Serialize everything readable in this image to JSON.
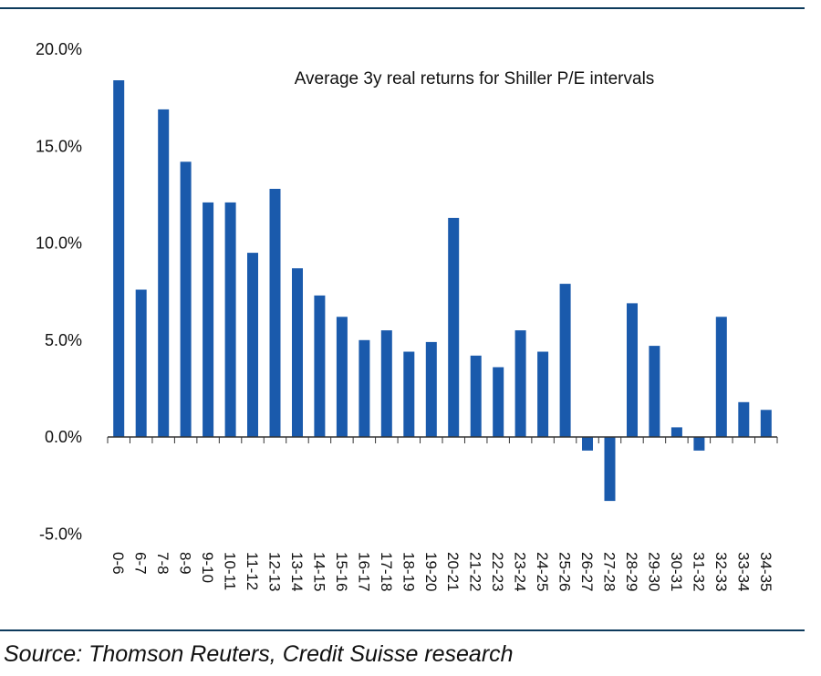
{
  "source_note": "Source: Thomson Reuters, Credit Suisse research",
  "chart_data": {
    "type": "bar",
    "title": "Average 3y real returns for Shiller P/E intervals",
    "xlabel": "",
    "ylabel": "",
    "ylim": [
      -5,
      20
    ],
    "yticks": [
      "-5.0%",
      "0.0%",
      "5.0%",
      "10.0%",
      "15.0%",
      "20.0%"
    ],
    "ytick_values": [
      -5,
      0,
      5,
      10,
      15,
      20
    ],
    "grid": false,
    "bar_color": "#1a5aac",
    "categories": [
      "0-6",
      "6-7",
      "7-8",
      "8-9",
      "9-10",
      "10-11",
      "11-12",
      "12-13",
      "13-14",
      "14-15",
      "15-16",
      "16-17",
      "17-18",
      "18-19",
      "19-20",
      "20-21",
      "21-22",
      "22-23",
      "23-24",
      "24-25",
      "25-26",
      "26-27",
      "27-28",
      "28-29",
      "29-30",
      "30-31",
      "31-32",
      "32-33",
      "33-34",
      "34-35"
    ],
    "values": [
      18.4,
      7.6,
      16.9,
      14.2,
      12.1,
      12.1,
      9.5,
      12.8,
      8.7,
      7.3,
      6.2,
      5.0,
      5.5,
      4.4,
      4.9,
      11.3,
      4.2,
      3.6,
      5.5,
      4.4,
      7.9,
      -0.7,
      -3.3,
      6.9,
      4.7,
      0.5,
      -0.7,
      6.2,
      1.8,
      1.4
    ]
  }
}
